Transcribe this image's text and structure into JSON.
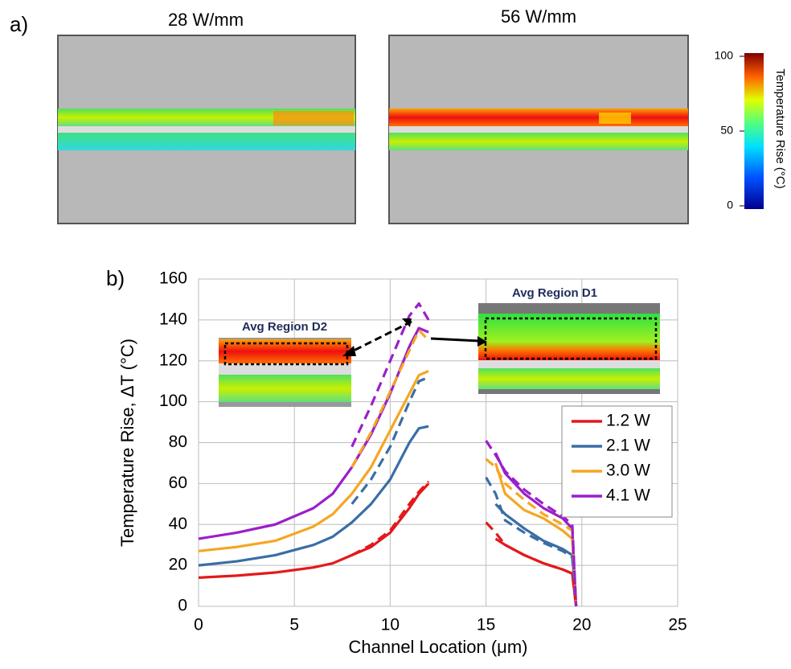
{
  "panel_a": {
    "label": "a)",
    "titles": [
      "28 W/mm",
      "56 W/mm"
    ],
    "colorbar": {
      "label": "Temperature Rise (°C)",
      "lim": [
        0,
        100
      ],
      "ticks": [
        0,
        50,
        100
      ]
    }
  },
  "panel_b": {
    "label": "b)",
    "insets": [
      "Avg Region D2",
      "Avg Region D1"
    ]
  },
  "chart_data": {
    "type": "line",
    "xlabel": "Channel Location (μm)",
    "ylabel": "Temperature Rise, ΔT (°C)",
    "x": [
      0,
      2,
      4,
      6,
      7,
      8,
      9,
      10,
      11,
      11.5,
      12,
      13.5,
      15,
      15.5,
      16,
      17,
      18,
      19,
      19.5,
      19.7
    ],
    "xlim": [
      0,
      25
    ],
    "xticks": [
      0,
      5,
      10,
      15,
      20,
      25
    ],
    "ylim": [
      0,
      160
    ],
    "yticks": [
      0,
      20,
      40,
      60,
      80,
      100,
      120,
      140,
      160
    ],
    "grid": true,
    "legend": "right",
    "series": [
      {
        "name": "1.2 W",
        "color": "#e3191c",
        "values": [
          14,
          15,
          16.5,
          19,
          21,
          25,
          29,
          36,
          48,
          55,
          60,
          null,
          null,
          33,
          30,
          25,
          21,
          18,
          16,
          0
        ]
      },
      {
        "name": "2.1 W",
        "color": "#3a6ea5",
        "values": [
          20,
          22,
          25,
          30,
          34,
          41,
          50,
          62,
          80,
          87,
          88,
          null,
          null,
          50,
          45,
          38,
          32,
          28,
          25,
          0
        ]
      },
      {
        "name": "3.0 W",
        "color": "#f5a623",
        "values": [
          27,
          29,
          32,
          39,
          45,
          55,
          68,
          86,
          104,
          113,
          115,
          null,
          null,
          70,
          55,
          47,
          43,
          37,
          33,
          0
        ]
      },
      {
        "name": "4.1 W",
        "color": "#9b1fc9",
        "values": [
          33,
          36,
          40,
          48,
          55,
          68,
          84,
          104,
          127,
          136,
          134,
          null,
          null,
          75,
          65,
          55,
          48,
          43,
          38,
          0
        ]
      },
      {
        "color": "#e3191c",
        "dashed": true,
        "values": [
          null,
          null,
          null,
          null,
          null,
          25,
          30,
          37,
          50,
          56,
          61,
          null,
          41,
          36,
          30,
          25,
          21,
          18,
          16,
          0
        ]
      },
      {
        "color": "#3a6ea5",
        "dashed": true,
        "values": [
          null,
          null,
          null,
          null,
          null,
          50,
          62,
          78,
          100,
          110,
          112,
          null,
          63,
          55,
          42,
          36,
          31,
          27,
          24,
          0
        ]
      },
      {
        "color": "#f5a623",
        "dashed": true,
        "values": [
          null,
          null,
          null,
          null,
          null,
          68,
          85,
          105,
          125,
          135,
          130,
          null,
          72,
          68,
          60,
          52,
          45,
          40,
          37,
          0
        ]
      },
      {
        "color": "#9b1fc9",
        "dashed": true,
        "values": [
          null,
          null,
          null,
          null,
          null,
          78,
          98,
          120,
          142,
          148,
          140,
          null,
          81,
          74,
          66,
          57,
          50,
          44,
          40,
          0
        ]
      }
    ]
  }
}
